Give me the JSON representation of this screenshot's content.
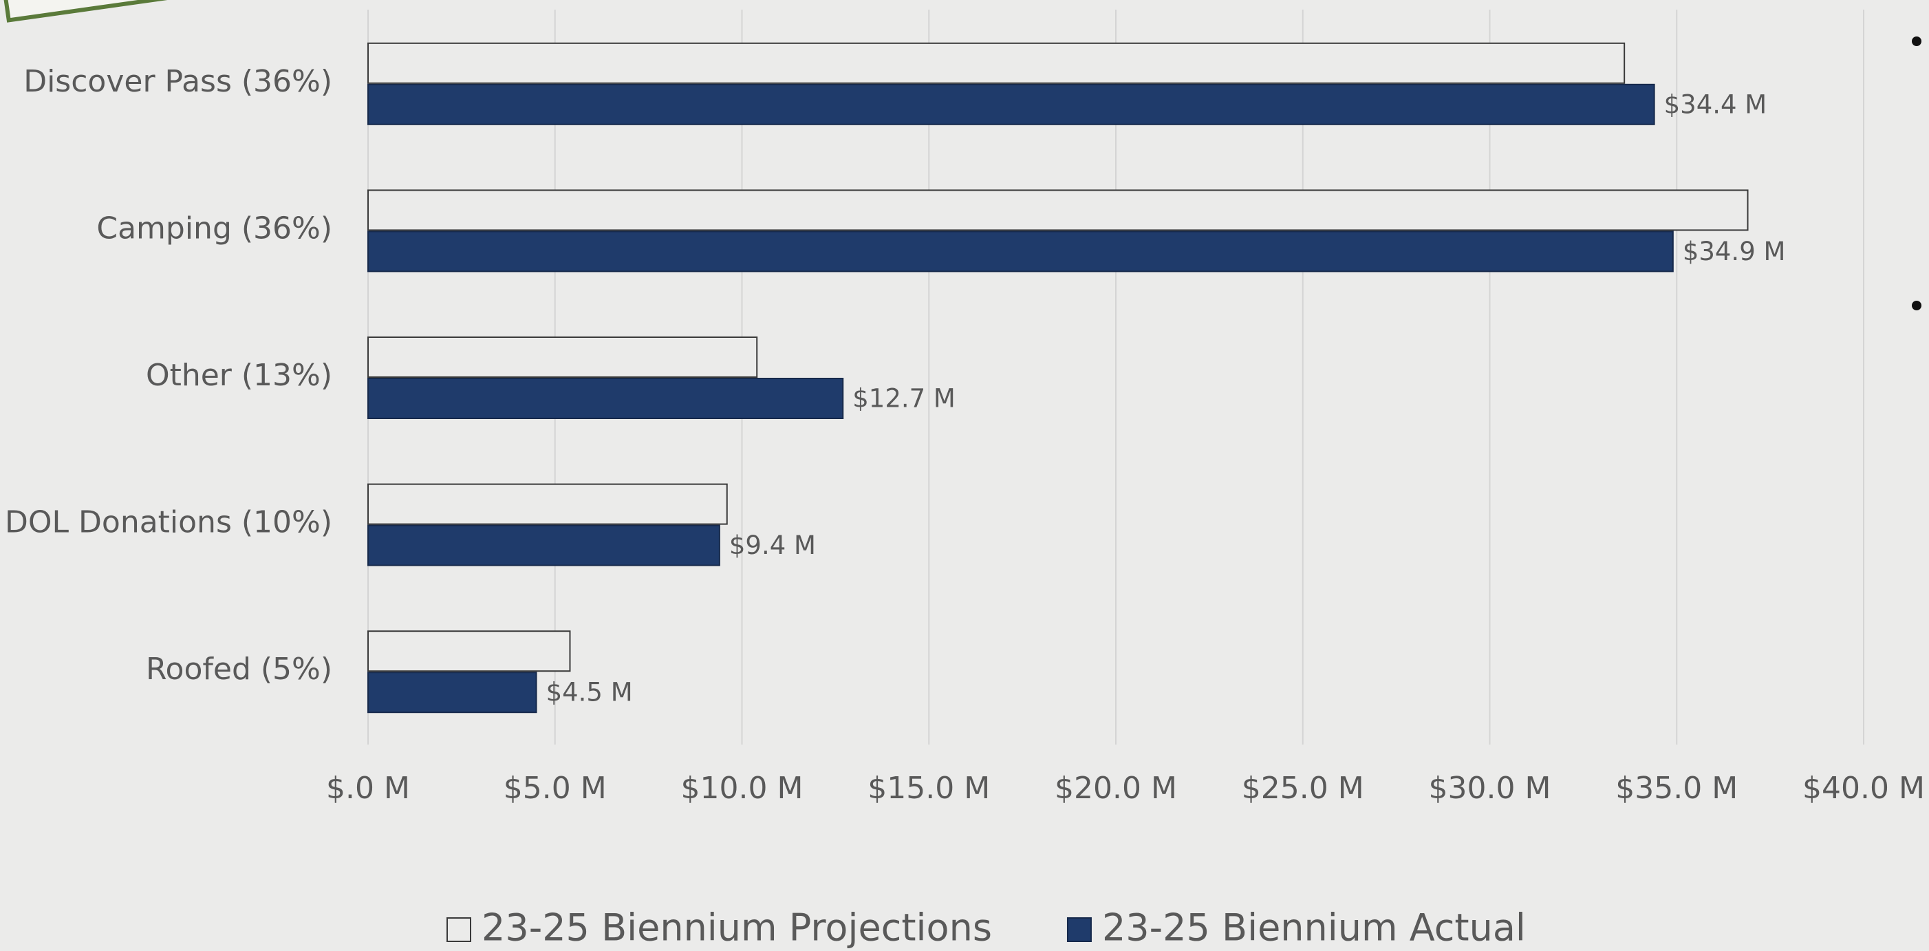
{
  "chart_data": {
    "type": "bar",
    "orientation": "horizontal",
    "categories": [
      "Discover Pass (36%)",
      "Camping (36%)",
      "Other (13%)",
      "DOL Donations (10%)",
      "Roofed (5%)"
    ],
    "series": [
      {
        "name": "23-25 Biennium Projections",
        "color": "#ebebea",
        "stroke": "#3a3a3a",
        "values": [
          33.6,
          36.9,
          10.4,
          9.6,
          5.4
        ]
      },
      {
        "name": "23-25 Biennium Actual",
        "color": "#1f3b6b",
        "values": [
          34.4,
          34.9,
          12.7,
          9.4,
          4.5
        ],
        "value_labels": [
          "$34.4 M",
          "$34.9 M",
          "$12.7 M",
          "$9.4 M",
          "$4.5 M"
        ]
      }
    ],
    "xlim": [
      0,
      40
    ],
    "xticks": [
      {
        "value": 0,
        "label": "$.0 M"
      },
      {
        "value": 5,
        "label": "$5.0 M"
      },
      {
        "value": 10,
        "label": "$10.0 M"
      },
      {
        "value": 15,
        "label": "$15.0 M"
      },
      {
        "value": 20,
        "label": "$20.0 M"
      },
      {
        "value": 25,
        "label": "$25.0 M"
      },
      {
        "value": 30,
        "label": "$30.0 M"
      },
      {
        "value": 35,
        "label": "$35.0 M"
      },
      {
        "value": 40,
        "label": "$40.0 M"
      }
    ],
    "grid": true,
    "legend": "bottom"
  }
}
